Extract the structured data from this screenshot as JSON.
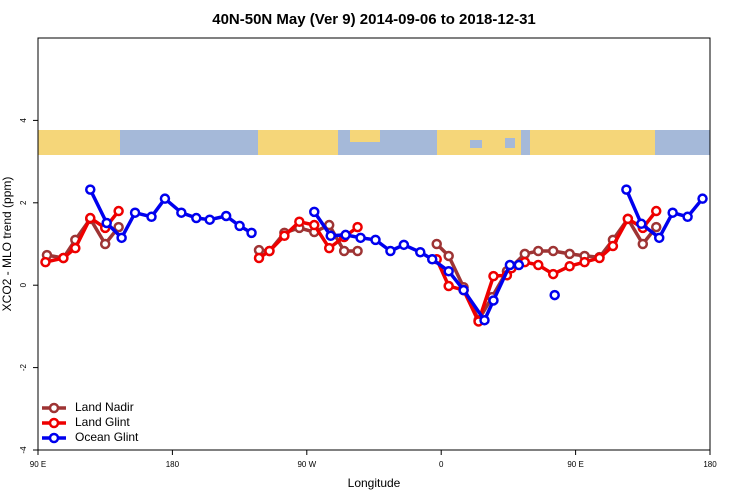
{
  "chart_data": {
    "type": "line",
    "title": "40N-50N May (Ver 9)   2014-09-06 to 2018-12-31",
    "x_label": "Longitude",
    "y_label": "XCO2 - MLO trend (ppm)",
    "xlim": [
      90,
      540
    ],
    "xticks": [
      {
        "value": 90,
        "label": "90 E"
      },
      180,
      {
        "value": 270,
        "label": "90 W"
      },
      {
        "value": 360,
        "label": "0"
      },
      {
        "value": 450,
        "label": "90 E"
      },
      {
        "value": 540,
        "label": "180"
      }
    ],
    "ylim": [
      -4,
      6
    ],
    "yticks": [
      -4,
      -2,
      0,
      2,
      4
    ],
    "legend": "bottom-left",
    "series": [
      {
        "name": "Land Nadir",
        "color": "#9e3434",
        "x": [
          96,
          107,
          115,
          125,
          135,
          144,
          null,
          238,
          245,
          255,
          265,
          275,
          285,
          295,
          304,
          null,
          357,
          365,
          375,
          385,
          394,
          404,
          416,
          425,
          435,
          446,
          456,
          466,
          475,
          485,
          495,
          504
        ],
        "values": [
          0.73,
          0.66,
          1.1,
          1.61,
          1.0,
          1.41,
          null,
          0.85,
          0.83,
          1.27,
          1.39,
          1.29,
          1.46,
          0.83,
          0.83,
          null,
          1.0,
          0.71,
          -0.05,
          -0.85,
          -0.29,
          0.34,
          0.76,
          0.83,
          0.83,
          0.76,
          0.71,
          0.68,
          1.1,
          1.61,
          1.0,
          1.41
        ]
      },
      {
        "name": "Land Glint",
        "color": "#ee0000",
        "x": [
          95,
          107,
          115,
          125,
          135,
          144,
          null,
          238,
          245,
          255,
          265,
          275,
          285,
          295,
          304,
          null,
          357,
          365,
          375,
          385,
          395,
          404,
          407,
          416,
          425,
          435,
          446,
          456,
          466,
          475,
          485,
          495,
          504
        ],
        "values": [
          0.56,
          0.66,
          0.9,
          1.63,
          1.39,
          1.8,
          null,
          0.66,
          0.83,
          1.2,
          1.54,
          1.46,
          0.9,
          1.17,
          1.41,
          null,
          0.63,
          -0.02,
          -0.12,
          -0.88,
          0.22,
          0.24,
          0.41,
          0.56,
          0.49,
          0.27,
          0.46,
          0.56,
          0.66,
          0.95,
          1.61,
          1.39,
          1.8
        ]
      },
      {
        "name": "Ocean Glint",
        "color": "#0000ee",
        "x": [
          125,
          136,
          146,
          155,
          166,
          175,
          186,
          196,
          205,
          216,
          225,
          233,
          null,
          275,
          286,
          296,
          306,
          316,
          326,
          335,
          346,
          354,
          365,
          375,
          389,
          395,
          406,
          412,
          null,
          436,
          null,
          484,
          494,
          506,
          515,
          525,
          535
        ],
        "values": [
          2.32,
          1.51,
          1.15,
          1.76,
          1.66,
          2.1,
          1.76,
          1.63,
          1.59,
          1.68,
          1.44,
          1.27,
          null,
          1.78,
          1.2,
          1.22,
          1.15,
          1.1,
          0.83,
          0.98,
          0.8,
          0.63,
          0.34,
          -0.12,
          -0.85,
          -0.37,
          0.49,
          0.49,
          null,
          -0.24,
          null,
          2.32,
          1.49,
          1.15,
          1.76,
          1.66,
          2.1
        ]
      }
    ]
  }
}
